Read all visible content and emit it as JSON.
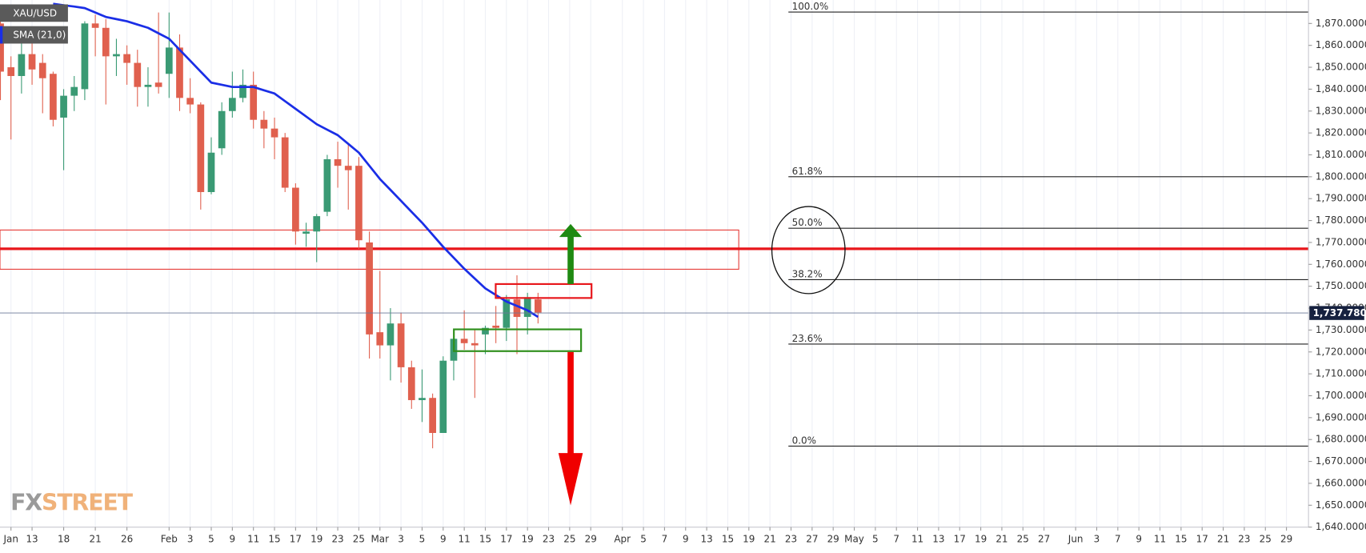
{
  "chart_data": {
    "type": "candlestick",
    "title": "XAU/USD",
    "up_color": "#3a9a74",
    "down_color": "#e0604e",
    "doji_color": "#7a7a7a",
    "ylim": [
      1640,
      1880.7
    ],
    "yticks": [
      {
        "value": 1640,
        "label": "1,640.0000"
      },
      {
        "value": 1650,
        "label": "1,650.0000"
      },
      {
        "value": 1660,
        "label": "1,660.0000"
      },
      {
        "value": 1670,
        "label": "1,670.0000"
      },
      {
        "value": 1680,
        "label": "1,680.0000"
      },
      {
        "value": 1690,
        "label": "1,690.0000"
      },
      {
        "value": 1700,
        "label": "1,700.0000"
      },
      {
        "value": 1710,
        "label": "1,710.0000"
      },
      {
        "value": 1720,
        "label": "1,720.0000"
      },
      {
        "value": 1730,
        "label": "1,730.0000"
      },
      {
        "value": 1740,
        "label": "1,740.0000"
      },
      {
        "value": 1750,
        "label": "1,750.0000"
      },
      {
        "value": 1760,
        "label": "1,760.0000"
      },
      {
        "value": 1770,
        "label": "1,770.0000"
      },
      {
        "value": 1780,
        "label": "1,780.0000"
      },
      {
        "value": 1790,
        "label": "1,790.0000"
      },
      {
        "value": 1800,
        "label": "1,800.0000"
      },
      {
        "value": 1810,
        "label": "1,810.0000"
      },
      {
        "value": 1820,
        "label": "1,820.0000"
      },
      {
        "value": 1830,
        "label": "1,830.0000"
      },
      {
        "value": 1840,
        "label": "1,840.0000"
      },
      {
        "value": 1850,
        "label": "1,850.0000"
      },
      {
        "value": 1860,
        "label": "1,860.0000"
      },
      {
        "value": 1870,
        "label": "1,870.0000"
      }
    ],
    "categories": [
      null,
      "Jan",
      null,
      "13",
      null,
      null,
      "18",
      null,
      null,
      "21",
      null,
      null,
      "26",
      null,
      null,
      null,
      "Feb",
      null,
      "3",
      null,
      "5",
      null,
      "9",
      null,
      "11",
      null,
      "15",
      null,
      "17",
      null,
      "19",
      null,
      "23",
      null,
      "25",
      null,
      "Mar",
      null,
      "3",
      null,
      "5",
      null,
      "9",
      null,
      "11",
      null,
      "15",
      null,
      "17",
      null,
      "19",
      null,
      "23",
      null,
      "25",
      null,
      "29",
      null,
      null,
      "Apr",
      null,
      "5",
      null,
      "7",
      null,
      "9",
      null,
      "13",
      null,
      "15",
      null,
      "19",
      null,
      "21",
      null,
      "23",
      null,
      "27",
      null,
      "29",
      null,
      "May",
      null,
      "5",
      null,
      "7",
      null,
      "11",
      null,
      "13",
      null,
      "17",
      null,
      "19",
      null,
      "21",
      null,
      "25",
      null,
      "27",
      null,
      null,
      "Jun",
      null,
      "3",
      null,
      "7",
      null,
      "9",
      null,
      "11",
      null,
      "15",
      null,
      "17",
      null,
      "21",
      null,
      "23",
      null,
      "25",
      null,
      "29",
      null
    ],
    "open": [
      1870,
      1850,
      1846,
      1856,
      1852,
      1847,
      1827,
      1837,
      1840,
      1870,
      1868,
      1855,
      1856,
      1852,
      1841,
      1843,
      1847,
      1859,
      1836,
      1833,
      1793,
      1813,
      1830,
      1836,
      1842,
      1826,
      1822,
      1818,
      1795,
      1774,
      1775,
      1784,
      1808,
      1805,
      1805,
      1770,
      1729,
      1723,
      1733,
      1713,
      1698,
      1699,
      1683,
      1716,
      1726,
      1724,
      1728,
      1732,
      1731,
      1744,
      1736,
      1744,
      null,
      null,
      null,
      null,
      null,
      null,
      null,
      null,
      null,
      null,
      null,
      null,
      null,
      null,
      null,
      null,
      null,
      null,
      null,
      null,
      null,
      null,
      null,
      null,
      null,
      null,
      null,
      null,
      null,
      null,
      null,
      null,
      null,
      null,
      null,
      null,
      null,
      null,
      null,
      null,
      null,
      null,
      null,
      null,
      null,
      null,
      null,
      null,
      null,
      null,
      null,
      null,
      null,
      null,
      null,
      null,
      null,
      null,
      null,
      null,
      null,
      null,
      null,
      null,
      null,
      null,
      null,
      null,
      null,
      null,
      null,
      null
    ],
    "high": [
      1875,
      1855,
      1862,
      1863,
      1856,
      1848,
      1840,
      1846,
      1871,
      1874,
      1872,
      1863,
      1860,
      1858,
      1850,
      1875,
      1875,
      1865,
      1845,
      1834,
      1818,
      1834,
      1848,
      1849,
      1848,
      1830,
      1827,
      1820,
      1797,
      1779,
      1783,
      1810,
      1816,
      1815,
      1809,
      1775,
      1757,
      1740,
      1738,
      1716,
      1712,
      1701,
      1718,
      1729,
      1739,
      1730,
      1732,
      1741,
      1746,
      1755,
      1747,
      1747,
      null,
      null,
      null,
      null,
      null,
      null,
      null,
      null,
      null,
      null,
      null,
      null,
      null,
      null,
      null,
      null,
      null,
      null,
      null,
      null,
      null,
      null,
      null,
      null,
      null,
      null,
      null,
      null,
      null,
      null,
      null,
      null,
      null,
      null,
      null,
      null,
      null,
      null,
      null,
      null,
      null,
      null,
      null,
      null,
      null,
      null,
      null,
      null,
      null,
      null,
      null,
      null,
      null,
      null,
      null,
      null,
      null,
      null,
      null,
      null,
      null,
      null,
      null,
      null,
      null,
      null,
      null,
      null,
      null,
      null,
      null,
      null
    ],
    "low": [
      1835,
      1817,
      1838,
      1842,
      1829,
      1823,
      1803,
      1830,
      1835,
      1855,
      1833,
      1846,
      1842,
      1832,
      1832,
      1838,
      1836,
      1830,
      1829,
      1785,
      1792,
      1810,
      1827,
      1834,
      1822,
      1813,
      1808,
      1793,
      1769,
      1768,
      1761,
      1782,
      1795,
      1785,
      1767,
      1717,
      1717,
      1707,
      1706,
      1694,
      1688,
      1676,
      1683,
      1707,
      1721,
      1699,
      1719,
      1724,
      1725,
      1719,
      1728,
      1733,
      null,
      null,
      null,
      null,
      null,
      null,
      null,
      null,
      null,
      null,
      null,
      null,
      null,
      null,
      null,
      null,
      null,
      null,
      null,
      null,
      null,
      null,
      null,
      null,
      null,
      null,
      null,
      null,
      null,
      null,
      null,
      null,
      null,
      null,
      null,
      null,
      null,
      null,
      null,
      null,
      null,
      null,
      null,
      null,
      null,
      null,
      null,
      null,
      null,
      null,
      null,
      null,
      null,
      null,
      null,
      null,
      null,
      null,
      null,
      null,
      null,
      null,
      null,
      null,
      null,
      null,
      null,
      null,
      null,
      null,
      null,
      null
    ],
    "close": [
      1848,
      1846,
      1856,
      1849,
      1845,
      1826,
      1837,
      1841,
      1870,
      1868,
      1855,
      1856,
      1852,
      1841,
      1842,
      1841,
      1859,
      1836,
      1833,
      1793,
      1811,
      1830,
      1836,
      1842,
      1826,
      1822,
      1818,
      1795,
      1775,
      1775,
      1782,
      1808,
      1805,
      1803,
      1771,
      1728,
      1723,
      1733,
      1713,
      1698,
      1699,
      1683,
      1716,
      1726,
      1724,
      1723,
      1731,
      1731,
      1744,
      1736,
      1745,
      1738,
      null,
      null,
      null,
      null,
      null,
      null,
      null,
      null,
      null,
      null,
      null,
      null,
      null,
      null,
      null,
      null,
      null,
      null,
      null,
      null,
      null,
      null,
      null,
      null,
      null,
      null,
      null,
      null,
      null,
      null,
      null,
      null,
      null,
      null,
      null,
      null,
      null,
      null,
      null,
      null,
      null,
      null,
      null,
      null,
      null,
      null,
      null,
      null,
      null,
      null,
      null,
      null,
      null,
      null,
      null,
      null,
      null,
      null,
      null,
      null,
      null,
      null,
      null,
      null,
      null,
      null,
      null,
      null,
      null,
      null,
      null,
      null
    ],
    "sma": {
      "name": "SMA (21,0)",
      "color": "#1a2ee6",
      "values": [
        null,
        null,
        null,
        null,
        null,
        1879,
        1878.3,
        1877.7,
        1877,
        1875,
        1873,
        1872,
        1871,
        1869.5,
        1868,
        1865.5,
        1863,
        1858,
        1853,
        1848,
        1843,
        1842,
        1841,
        1841,
        1841,
        1839.5,
        1838,
        1834.5,
        1831,
        1827.5,
        1824,
        1821.5,
        1819,
        1815,
        1811,
        1805,
        1799,
        1794,
        1789,
        1784,
        1779,
        1773.5,
        1768,
        1763,
        1758,
        1753.5,
        1749,
        1746,
        1743,
        1741,
        1739,
        1736,
        null,
        null,
        null,
        null,
        null,
        null,
        null,
        null,
        null,
        null,
        null,
        null,
        null,
        null,
        null,
        null,
        null,
        null,
        null,
        null,
        null,
        null,
        null,
        null,
        null,
        null,
        null,
        null,
        null,
        null,
        null,
        null,
        null,
        null,
        null,
        null,
        null,
        null,
        null,
        null,
        null,
        null,
        null,
        null,
        null,
        null,
        null,
        null,
        null,
        null,
        null,
        null,
        null,
        null,
        null,
        null,
        null,
        null,
        null,
        null,
        null,
        null,
        null,
        null,
        null,
        null,
        null,
        null,
        null,
        null,
        null,
        null
      ]
    },
    "fib_levels": [
      {
        "label": "100.0%",
        "value": 1875.2
      },
      {
        "label": "61.8%",
        "value": 1800
      },
      {
        "label": "50.0%",
        "value": 1776.5
      },
      {
        "label": "38.2%",
        "value": 1753
      },
      {
        "label": "23.6%",
        "value": 1723.6
      },
      {
        "label": "0.0%",
        "value": 1677
      }
    ],
    "last_price": {
      "value": 1737.78,
      "label": "1,737.7800"
    },
    "watermark": [
      "FX",
      "STREET"
    ]
  }
}
